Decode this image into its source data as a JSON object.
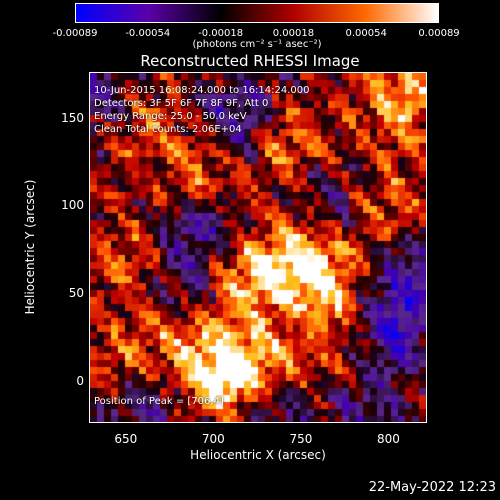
{
  "colorbar": {
    "tick_labels": [
      "-0.00089",
      "-0.00054",
      "-0.00018",
      "0.00018",
      "0.00054",
      "0.00089"
    ],
    "units": "(photons cm⁻² s⁻¹ asec⁻²)",
    "colors": [
      "#0000ff",
      "#5a00a8",
      "#000000",
      "#b00000",
      "#ff6a00",
      "#ffffff"
    ]
  },
  "info": {
    "time": "10-Jun-2015 16:08:24.000 to 16:14:24.000",
    "detectors": "Detectors: 3F 5F 6F 7F 8F 9F, Att 0",
    "energy": "Energy Range: 25.0 - 50.0 keV",
    "method": "Clean     Total counts: 2.06E+04",
    "peak": "Position of Peak = [706,4]"
  },
  "timestamp": "22-May-2022 12:23",
  "chart_data": {
    "type": "heatmap",
    "title": "Reconstructed RHESSI Image",
    "xlabel": "Heliocentric X (arcsec)",
    "ylabel": "Heliocentric Y (arcsec)",
    "xlim": [
      629,
      822
    ],
    "ylim": [
      -24,
      176
    ],
    "xticks": [
      650,
      700,
      750,
      800
    ],
    "yticks": [
      0,
      50,
      100,
      150
    ],
    "zlim": [
      -0.00089,
      0.00089
    ],
    "peak_position": [
      706,
      4
    ],
    "sources": [
      {
        "x": 706,
        "y": 4,
        "strength": 0.00089
      },
      {
        "x": 752,
        "y": 70,
        "strength": 0.00075
      },
      {
        "x": 720,
        "y": 58,
        "strength": 0.0006
      },
      {
        "x": 770,
        "y": 45,
        "strength": 0.0005
      },
      {
        "x": 808,
        "y": 160,
        "strength": 0.0006
      },
      {
        "x": 655,
        "y": 150,
        "strength": 0.00045
      },
      {
        "x": 690,
        "y": 120,
        "strength": 0.0004
      },
      {
        "x": 740,
        "y": 135,
        "strength": 0.00045
      },
      {
        "x": 655,
        "y": 70,
        "strength": 0.0004
      },
      {
        "x": 680,
        "y": 30,
        "strength": 0.00045
      },
      {
        "x": 730,
        "y": 10,
        "strength": 0.0004
      },
      {
        "x": 800,
        "y": 100,
        "strength": 0.00035
      },
      {
        "x": 775,
        "y": 5,
        "strength": 0.00035
      },
      {
        "x": 645,
        "y": 10,
        "strength": 0.0003
      }
    ],
    "negative_regions": [
      {
        "x": 715,
        "y": 150,
        "strength": -0.0006
      },
      {
        "x": 640,
        "y": 160,
        "strength": -0.0005
      },
      {
        "x": 690,
        "y": 85,
        "strength": -0.0005
      },
      {
        "x": 680,
        "y": 50,
        "strength": -0.00045
      },
      {
        "x": 765,
        "y": 100,
        "strength": -0.00035
      },
      {
        "x": 800,
        "y": 30,
        "strength": -0.0007
      },
      {
        "x": 815,
        "y": 60,
        "strength": -0.0005
      },
      {
        "x": 785,
        "y": -10,
        "strength": -0.0005
      },
      {
        "x": 660,
        "y": -15,
        "strength": -0.0004
      },
      {
        "x": 735,
        "y": -15,
        "strength": -0.0004
      }
    ]
  }
}
